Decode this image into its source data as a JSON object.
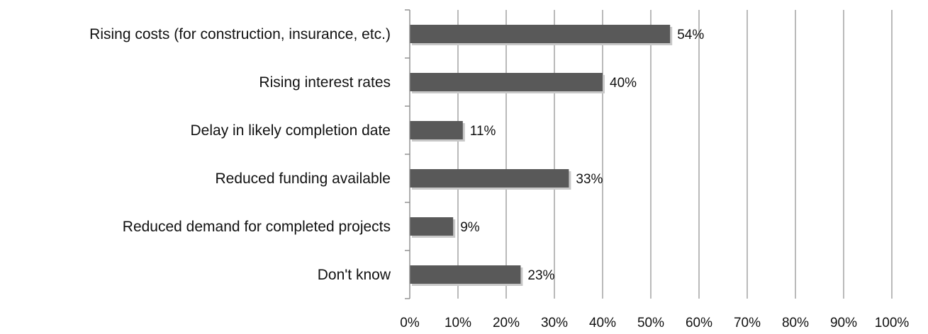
{
  "chart_data": {
    "type": "bar",
    "orientation": "horizontal",
    "categories": [
      "Rising costs (for construction, insurance, etc.)",
      "Rising interest rates",
      "Delay in likely completion date",
      "Reduced funding available",
      "Reduced demand for completed projects",
      "Don't know"
    ],
    "values": [
      54,
      40,
      11,
      33,
      9,
      23
    ],
    "data_labels": [
      "54%",
      "40%",
      "11%",
      "33%",
      "9%",
      "23%"
    ],
    "xlim": [
      0,
      100
    ],
    "x_ticks": [
      0,
      10,
      20,
      30,
      40,
      50,
      60,
      70,
      80,
      90,
      100
    ],
    "x_tick_labels": [
      "0%",
      "10%",
      "20%",
      "30%",
      "40%",
      "50%",
      "60%",
      "70%",
      "80%",
      "90%",
      "100%"
    ],
    "grid": "vertical",
    "legend": "none",
    "bar_color": "#595959",
    "grid_color": "#8c8c8c"
  }
}
